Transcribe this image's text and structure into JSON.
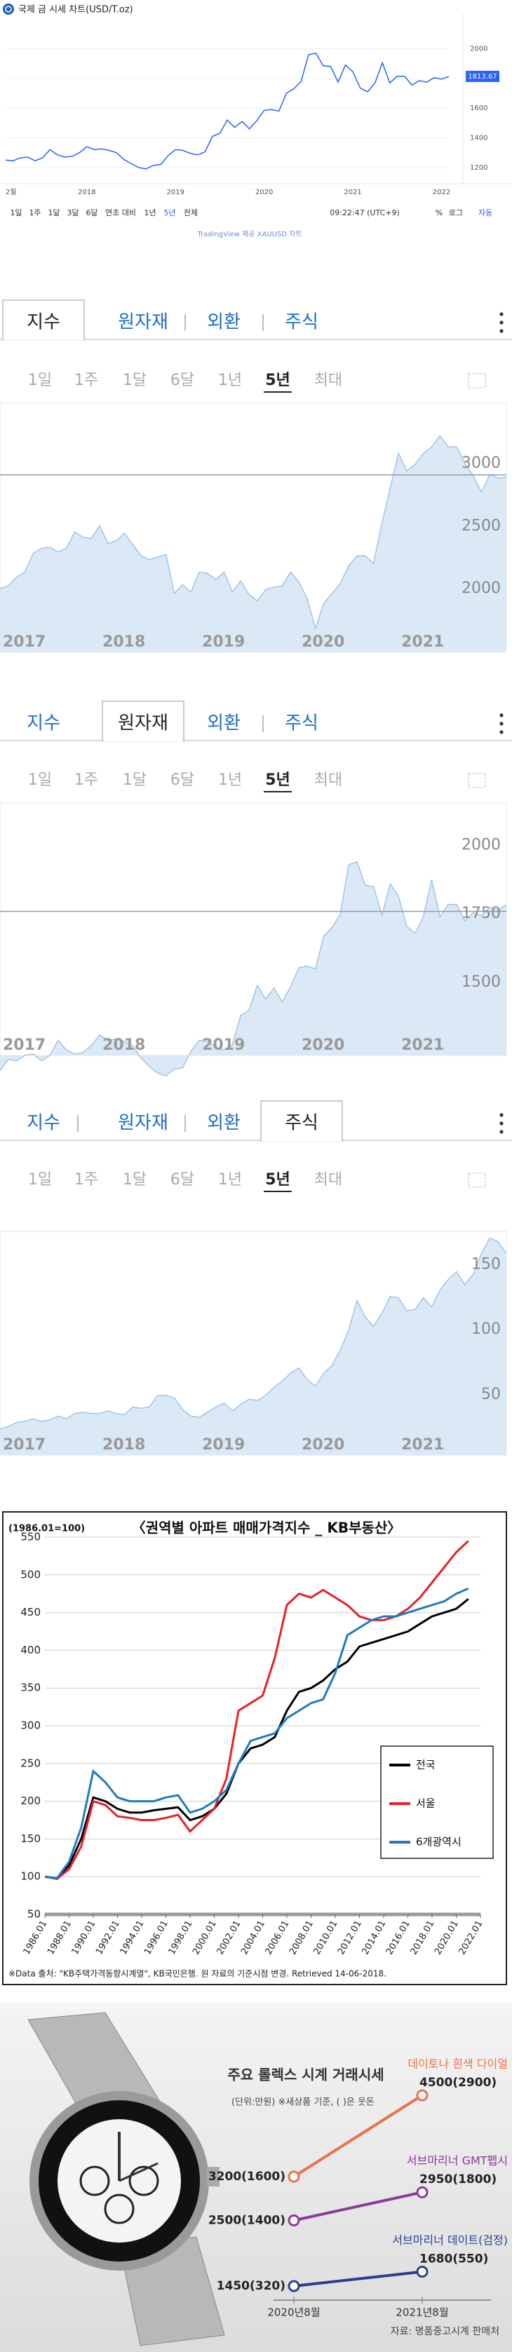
{
  "chart_data": [
    {
      "type": "line",
      "title": "국제 금 시세 차트(USD/T.oz)",
      "categories": [
        "2월",
        null,
        null,
        null,
        null,
        null,
        null,
        null,
        null,
        null,
        null,
        "2018",
        null,
        null,
        null,
        null,
        null,
        null,
        null,
        null,
        null,
        null,
        null,
        "2019",
        null,
        null,
        null,
        null,
        null,
        null,
        null,
        null,
        null,
        null,
        null,
        "2020",
        null,
        null,
        null,
        null,
        null,
        null,
        null,
        null,
        null,
        null,
        null,
        "2021",
        null,
        null,
        null,
        null,
        null,
        null,
        null,
        null,
        null,
        null,
        null,
        "2022",
        null
      ],
      "values": [
        1250,
        1245,
        1265,
        1270,
        1245,
        1265,
        1320,
        1285,
        1270,
        1275,
        1300,
        1340,
        1320,
        1325,
        1315,
        1300,
        1255,
        1225,
        1200,
        1190,
        1215,
        1220,
        1280,
        1320,
        1315,
        1295,
        1285,
        1305,
        1410,
        1430,
        1520,
        1470,
        1510,
        1460,
        1515,
        1585,
        1590,
        1580,
        1700,
        1730,
        1780,
        1960,
        1970,
        1885,
        1880,
        1775,
        1890,
        1845,
        1735,
        1710,
        1770,
        1905,
        1770,
        1815,
        1815,
        1755,
        1785,
        1775,
        1805,
        1795,
        1814
      ],
      "color": "#2962ff",
      "ylim": [
        1100,
        2130
      ],
      "yticks": [
        1200,
        1400,
        1600,
        1800,
        2000
      ],
      "grid": true,
      "last_price": 1813.67,
      "ranges": [
        "1일",
        "1주",
        "1달",
        "3달",
        "6달",
        "연초 대비",
        "1년",
        "5년",
        "전체"
      ],
      "active_range": 7,
      "toolbar": [
        "09:22:47 (UTC+9)",
        "%",
        "로그",
        "자동"
      ],
      "source": "TradingView 제공 XAUUSD 차트"
    },
    {
      "type": "area",
      "tabs": [
        "지수",
        "원자재",
        "외환",
        "주식"
      ],
      "active_tab": 0,
      "ranges": [
        "1일",
        "1주",
        "1달",
        "6달",
        "1년",
        "5년",
        "최대"
      ],
      "active_range": 5,
      "categories": [
        "2017",
        null,
        null,
        null,
        null,
        null,
        null,
        null,
        null,
        null,
        null,
        null,
        "2018",
        null,
        null,
        null,
        null,
        null,
        null,
        null,
        null,
        null,
        null,
        null,
        "2019",
        null,
        null,
        null,
        null,
        null,
        null,
        null,
        null,
        null,
        null,
        null,
        "2020",
        null,
        null,
        null,
        null,
        null,
        null,
        null,
        null,
        null,
        null,
        null,
        "2021",
        null,
        null,
        null,
        null,
        null,
        null,
        null,
        null,
        null,
        null,
        null,
        null,
        null
      ],
      "values": [
        2070,
        2090,
        2160,
        2200,
        2350,
        2390,
        2400,
        2360,
        2390,
        2520,
        2480,
        2470,
        2570,
        2430,
        2450,
        2510,
        2420,
        2330,
        2300,
        2320,
        2340,
        2030,
        2100,
        2040,
        2200,
        2190,
        2140,
        2200,
        2040,
        2130,
        2020,
        1970,
        2060,
        2080,
        2090,
        2200,
        2120,
        1990,
        1750,
        1950,
        2030,
        2110,
        2250,
        2330,
        2330,
        2270,
        2590,
        2870,
        3150,
        3010,
        3060,
        3150,
        3200,
        3290,
        3200,
        3200,
        3070,
        2970,
        2840,
        2980,
        2950,
        2960
      ],
      "color": "#9fc5e8",
      "fill_color": "#dbe9f6",
      "ylim": [
        1560,
        3550
      ],
      "yticks": [
        2000,
        2500,
        3000
      ],
      "reference_line": 2977
    },
    {
      "type": "area",
      "tabs": [
        "지수",
        "원자재",
        "외환",
        "주식"
      ],
      "active_tab": 1,
      "ranges": [
        "1일",
        "1주",
        "1달",
        "6달",
        "1년",
        "5년",
        "최대"
      ],
      "active_range": 5,
      "categories": [
        "2017",
        null,
        null,
        null,
        null,
        null,
        null,
        null,
        null,
        null,
        null,
        null,
        "2018",
        null,
        null,
        null,
        null,
        null,
        null,
        null,
        null,
        null,
        null,
        null,
        "2019",
        null,
        null,
        null,
        null,
        null,
        null,
        null,
        null,
        null,
        null,
        null,
        "2020",
        null,
        null,
        null,
        null,
        null,
        null,
        null,
        null,
        null,
        null,
        null,
        "2021",
        null,
        null,
        null,
        null,
        null,
        null,
        null,
        null,
        null,
        null,
        null,
        null,
        null
      ],
      "values": [
        1210,
        1250,
        1245,
        1265,
        1270,
        1245,
        1265,
        1320,
        1285,
        1270,
        1275,
        1300,
        1340,
        1320,
        1325,
        1315,
        1300,
        1255,
        1225,
        1200,
        1190,
        1215,
        1220,
        1280,
        1320,
        1315,
        1295,
        1285,
        1305,
        1410,
        1430,
        1520,
        1470,
        1510,
        1460,
        1515,
        1585,
        1590,
        1580,
        1700,
        1730,
        1780,
        1960,
        1970,
        1885,
        1880,
        1775,
        1890,
        1845,
        1735,
        1710,
        1770,
        1905,
        1770,
        1815,
        1815,
        1755,
        1785,
        1775,
        1805,
        1795,
        1814
      ],
      "color": "#9fc5e8",
      "fill_color": "#dbe9f6",
      "ylim": [
        1265,
        2185
      ],
      "yticks": [
        1500,
        1750,
        2000
      ],
      "reference_line": 1790
    },
    {
      "type": "area",
      "tabs": [
        "지수",
        "원자재",
        "외환",
        "주식"
      ],
      "active_tab": 3,
      "ranges": [
        "1일",
        "1주",
        "1달",
        "6달",
        "1년",
        "5년",
        "최대"
      ],
      "active_range": 5,
      "categories": [
        "2017",
        null,
        null,
        null,
        null,
        null,
        null,
        null,
        null,
        null,
        null,
        null,
        "2018",
        null,
        null,
        null,
        null,
        null,
        null,
        null,
        null,
        null,
        null,
        null,
        "2019",
        null,
        null,
        null,
        null,
        null,
        null,
        null,
        null,
        null,
        null,
        null,
        "2020",
        null,
        null,
        null,
        null,
        null,
        null,
        null,
        null,
        null,
        null,
        null,
        "2021",
        null,
        null,
        null,
        null,
        null,
        null,
        null,
        null,
        null,
        null,
        null,
        null,
        null
      ],
      "values": [
        30,
        32,
        35,
        36,
        38,
        36,
        37,
        40,
        38,
        42,
        43,
        42,
        42,
        44,
        42,
        41,
        47,
        46,
        47,
        56,
        56,
        54,
        45,
        40,
        39,
        43,
        47,
        50,
        44,
        49,
        53,
        52,
        56,
        62,
        67,
        73,
        77,
        68,
        63,
        73,
        79,
        91,
        106,
        129,
        116,
        109,
        119,
        132,
        131,
        121,
        122,
        131,
        124,
        137,
        145,
        151,
        141,
        149,
        165,
        177,
        174,
        165
      ],
      "color": "#9fc5e8",
      "fill_color": "#dbe9f6",
      "ylim": [
        10,
        182
      ],
      "yticks": [
        50,
        100,
        150
      ]
    },
    {
      "type": "line",
      "title": "〈권역별 아파트 매매가격지수 _ KB부동산〉",
      "subtitle": "(1986.01=100)",
      "x": [
        1986,
        1987,
        1988,
        1989,
        1990,
        1991,
        1992,
        1993,
        1994,
        1995,
        1996,
        1997,
        1998,
        1999,
        2000,
        2001,
        2002,
        2003,
        2004,
        2005,
        2006,
        2007,
        2008,
        2009,
        2010,
        2011,
        2012,
        2013,
        2014,
        2015,
        2016,
        2017,
        2018,
        2019,
        2020,
        2021
      ],
      "series": [
        {
          "name": "전국",
          "color": "#000000",
          "values": [
            100,
            98,
            115,
            150,
            205,
            200,
            190,
            185,
            185,
            188,
            190,
            192,
            175,
            180,
            190,
            210,
            250,
            270,
            275,
            285,
            320,
            345,
            350,
            360,
            375,
            385,
            405,
            410,
            415,
            420,
            425,
            435,
            445,
            450,
            455,
            468
          ]
        },
        {
          "name": "서울",
          "color": "#e8202a",
          "values": [
            100,
            97,
            110,
            140,
            200,
            195,
            180,
            178,
            175,
            175,
            178,
            182,
            160,
            175,
            190,
            230,
            320,
            330,
            340,
            390,
            460,
            475,
            470,
            480,
            470,
            460,
            445,
            440,
            440,
            445,
            455,
            470,
            490,
            510,
            530,
            545
          ]
        },
        {
          "name": "6개광역시",
          "color": "#1f7bc0",
          "values": [
            100,
            98,
            120,
            165,
            240,
            225,
            205,
            200,
            200,
            200,
            205,
            208,
            185,
            190,
            200,
            215,
            250,
            280,
            285,
            290,
            310,
            320,
            330,
            335,
            370,
            420,
            430,
            440,
            445,
            445,
            450,
            455,
            460,
            465,
            475,
            482
          ]
        }
      ],
      "xlim": [
        1986,
        2022
      ],
      "xticks": [
        {
          "value": 1986,
          "label": "1986.01"
        },
        {
          "value": 1988,
          "label": "1988.01"
        },
        {
          "value": 1990,
          "label": "1990.01"
        },
        {
          "value": 1992,
          "label": "1992.01"
        },
        {
          "value": 1994,
          "label": "1994.01"
        },
        {
          "value": 1996,
          "label": "1996.01"
        },
        {
          "value": 1998,
          "label": "1998.01"
        },
        {
          "value": 2000,
          "label": "2000.01"
        },
        {
          "value": 2002,
          "label": "2002.01"
        },
        {
          "value": 2004,
          "label": "2004.01"
        },
        {
          "value": 2006,
          "label": "2006.01"
        },
        {
          "value": 2008,
          "label": "2008.01"
        },
        {
          "value": 2010,
          "label": "2010.01"
        },
        {
          "value": 2012,
          "label": "2012.01"
        },
        {
          "value": 2014,
          "label": "2014.01"
        },
        {
          "value": 2016,
          "label": "2016.01"
        },
        {
          "value": 2018,
          "label": "2018.01"
        },
        {
          "value": 2020,
          "label": "2020.01"
        },
        {
          "value": 2022,
          "label": "2022.01"
        }
      ],
      "ylim": [
        50,
        550
      ],
      "yticks": [
        50,
        100,
        150,
        200,
        250,
        300,
        350,
        400,
        450,
        500,
        550
      ],
      "grid": true,
      "legend": "lower-right",
      "source": "※Data 출처: \"KB주택가격동향시계열\", KB국민은행. 원 자료의 기준시점 변경. Retrieved 14-06-2018."
    },
    {
      "type": "slope",
      "title": "주요 롤렉스 시계 거래시세",
      "subtitle": "(단위:만원) ※새상품 기준, ( )은 웃돈",
      "categories": [
        "2020년8월",
        "2021년8월"
      ],
      "series": [
        {
          "name": "데이토나 흰색 다이얼",
          "color": "#e8734a",
          "values": [
            3200,
            4500
          ],
          "premiums": [
            1600,
            2900
          ],
          "value_labels": [
            "3200(1600)",
            "4500(2900)"
          ]
        },
        {
          "name": "서브마리너 GMT펩시",
          "color": "#8b3a9a",
          "values": [
            2500,
            2950
          ],
          "premiums": [
            1400,
            1800
          ],
          "value_labels": [
            "2500(1400)",
            "2950(1800)"
          ]
        },
        {
          "name": "서브마리너 데이트(검정)",
          "color": "#2a3f8f",
          "values": [
            1450,
            1680
          ],
          "premiums": [
            320,
            550
          ],
          "value_labels": [
            "1450(320)",
            "1680(550)"
          ]
        }
      ],
      "source": "자료: 명품중고시계 판매처"
    }
  ]
}
